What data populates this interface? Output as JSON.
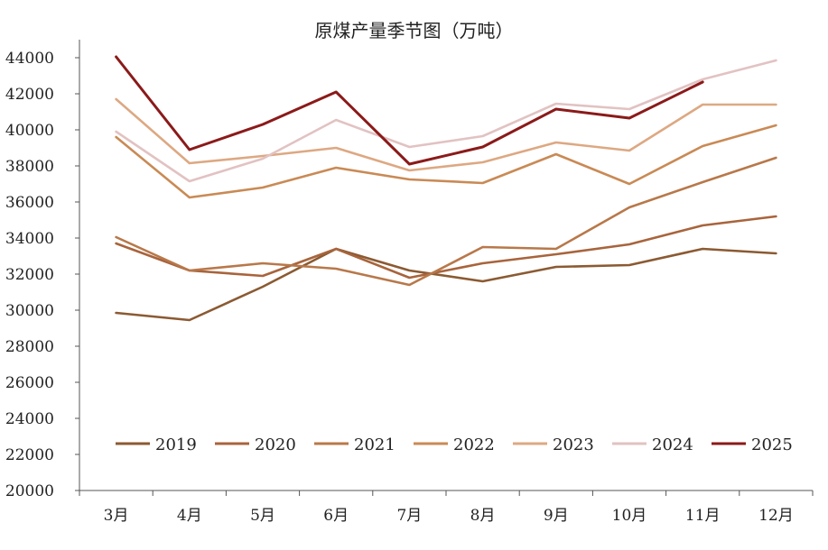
{
  "chart_data": {
    "type": "line",
    "title": "原煤产量季节图（万吨）",
    "xlabel": "",
    "ylabel": "",
    "categories": [
      "3月",
      "4月",
      "5月",
      "6月",
      "7月",
      "8月",
      "9月",
      "10月",
      "11月",
      "12月"
    ],
    "ylim": [
      20000,
      44000
    ],
    "yticks": [
      20000,
      22000,
      24000,
      26000,
      28000,
      30000,
      32000,
      34000,
      36000,
      38000,
      40000,
      42000,
      44000
    ],
    "grid": false,
    "legend": "bottom",
    "series": [
      {
        "name": "2019",
        "color": "#8B5A32",
        "values": [
          29850,
          29450,
          31300,
          33400,
          32200,
          31600,
          32400,
          32500,
          33400,
          33150
        ]
      },
      {
        "name": "2020",
        "color": "#A8643C",
        "values": [
          33700,
          32200,
          31900,
          33400,
          31800,
          32600,
          33100,
          33650,
          34700,
          35200
        ]
      },
      {
        "name": "2021",
        "color": "#B8784A",
        "values": [
          34050,
          32200,
          32600,
          32300,
          31400,
          33500,
          33400,
          35700,
          37100,
          38450
        ]
      },
      {
        "name": "2022",
        "color": "#C98A55",
        "values": [
          39600,
          36250,
          36800,
          37900,
          37250,
          37050,
          38650,
          37000,
          39100,
          40250
        ]
      },
      {
        "name": "2023",
        "color": "#DDA882",
        "values": [
          41700,
          38150,
          38550,
          39000,
          37750,
          38200,
          39300,
          38850,
          41400,
          41400
        ]
      },
      {
        "name": "2024",
        "color": "#E2C2C2",
        "values": [
          39900,
          37150,
          38400,
          40550,
          39050,
          39650,
          41450,
          41150,
          42800,
          43850
        ]
      },
      {
        "name": "2025",
        "color": "#8B1A1A",
        "values": [
          44050,
          38900,
          40300,
          42100,
          38100,
          39050,
          41150,
          40650,
          42650,
          null
        ]
      }
    ]
  }
}
